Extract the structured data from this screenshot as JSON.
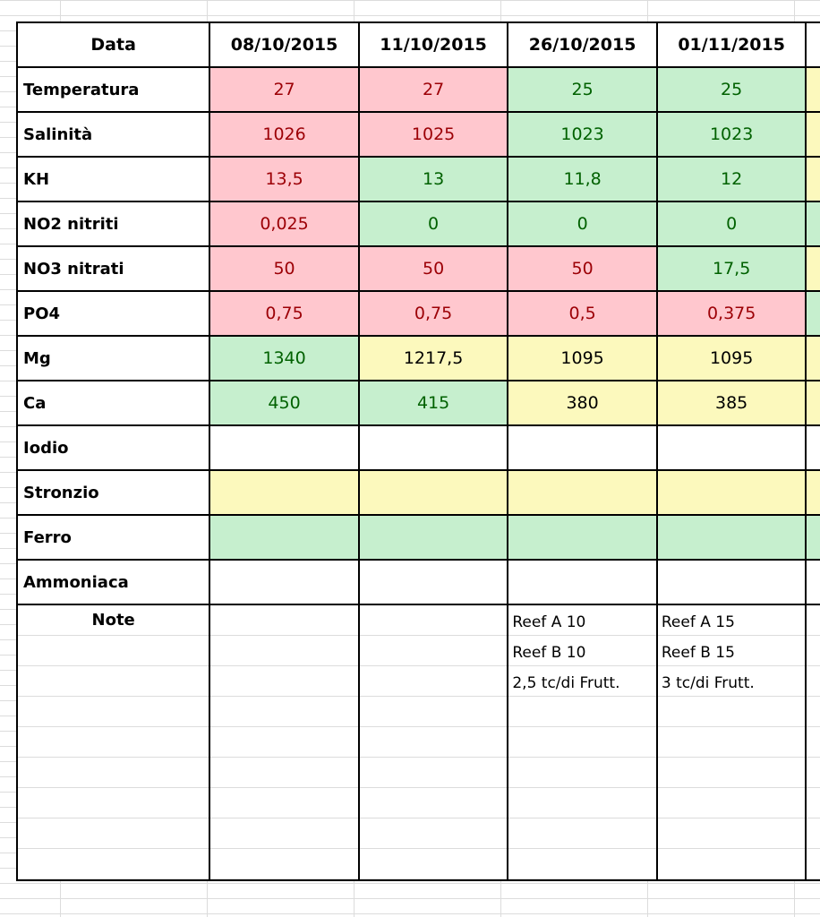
{
  "header": {
    "label": "Data",
    "dates": [
      "08/10/2015",
      "11/10/2015",
      "26/10/2015",
      "01/11/2015",
      ""
    ]
  },
  "rows": [
    {
      "label": "Temperatura",
      "values": [
        "27",
        "27",
        "25",
        "25",
        ""
      ],
      "status": [
        "red",
        "red",
        "green",
        "green",
        "yellow"
      ]
    },
    {
      "label": "Salinità",
      "values": [
        "1026",
        "1025",
        "1023",
        "1023",
        ""
      ],
      "status": [
        "red",
        "red",
        "green",
        "green",
        "yellow"
      ]
    },
    {
      "label": "KH",
      "values": [
        "13,5",
        "13",
        "11,8",
        "12",
        ""
      ],
      "status": [
        "red",
        "green",
        "green",
        "green",
        "yellow"
      ]
    },
    {
      "label": "NO2 nitriti",
      "values": [
        "0,025",
        "0",
        "0",
        "0",
        ""
      ],
      "status": [
        "red",
        "green",
        "green",
        "green",
        "green"
      ]
    },
    {
      "label": "NO3 nitrati",
      "values": [
        "50",
        "50",
        "50",
        "17,5",
        ""
      ],
      "status": [
        "red",
        "red",
        "red",
        "green",
        "yellow"
      ]
    },
    {
      "label": "PO4",
      "values": [
        "0,75",
        "0,75",
        "0,5",
        "0,375",
        ""
      ],
      "status": [
        "red",
        "red",
        "red",
        "red",
        "green"
      ]
    },
    {
      "label": "Mg",
      "values": [
        "1340",
        "1217,5",
        "1095",
        "1095",
        ""
      ],
      "status": [
        "green",
        "yellow",
        "yellow",
        "yellow",
        "yellow"
      ]
    },
    {
      "label": "Ca",
      "values": [
        "450",
        "415",
        "380",
        "385",
        ""
      ],
      "status": [
        "green",
        "green",
        "yellow",
        "yellow",
        "yellow"
      ]
    },
    {
      "label": "Iodio",
      "values": [
        "",
        "",
        "",
        "",
        ""
      ],
      "status": [
        "plain",
        "plain",
        "plain",
        "plain",
        "plain"
      ]
    },
    {
      "label": "Stronzio",
      "values": [
        "",
        "",
        "",
        "",
        ""
      ],
      "status": [
        "yellow",
        "yellow",
        "yellow",
        "yellow",
        "yellow"
      ]
    },
    {
      "label": "Ferro",
      "values": [
        "",
        "",
        "",
        "",
        ""
      ],
      "status": [
        "green",
        "green",
        "green",
        "green",
        "green"
      ]
    },
    {
      "label": "Ammoniaca",
      "values": [
        "",
        "",
        "",
        "",
        ""
      ],
      "status": [
        "plain",
        "plain",
        "plain",
        "plain",
        "plain"
      ]
    }
  ],
  "notes": {
    "label": "Note",
    "cells": [
      [],
      [],
      [
        "Reef A   10",
        "Reef B   10",
        "2,5 tc/di Frutt."
      ],
      [
        "Reef A 15",
        "Reef B 15",
        "3 tc/di Frutt."
      ],
      []
    ]
  },
  "colors": {
    "red_fill": "#ffc7ce",
    "red_text": "#9c0006",
    "green_fill": "#c6efce",
    "green_text": "#006100",
    "yellow_fill": "#fcf9bd"
  }
}
